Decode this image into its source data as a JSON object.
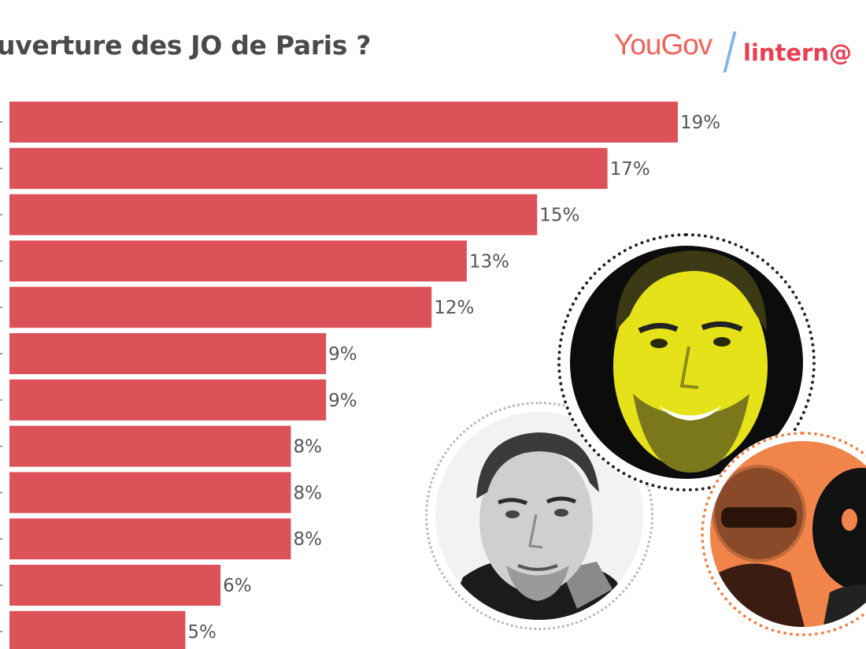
{
  "title": "uverture des JO de Paris ?",
  "logos": {
    "yougov": "YouGov",
    "partner": "lintern@"
  },
  "colors": {
    "bar": "#dd5159",
    "text": "#555555",
    "yellow": "#e6e21a",
    "orange": "#f0844a"
  },
  "chart_data": {
    "type": "bar",
    "orientation": "horizontal",
    "categories": [
      "",
      "",
      "",
      "",
      "",
      "",
      "",
      "",
      "",
      "",
      "",
      ""
    ],
    "values": [
      19,
      17,
      15,
      13,
      12,
      9,
      9,
      8,
      8,
      8,
      6,
      5
    ],
    "labels": [
      "19%",
      "17%",
      "15%",
      "13%",
      "12%",
      "9%",
      "9%",
      "8%",
      "8%",
      "8%",
      "6%",
      "5%"
    ],
    "xlim": [
      0,
      19
    ],
    "grid": false
  },
  "photos": [
    {
      "name": "man-yellow-portrait",
      "style": "yellow duotone"
    },
    {
      "name": "man-grayscale-portrait",
      "style": "black and white"
    },
    {
      "name": "helmets-orange-portrait",
      "style": "orange duotone"
    }
  ]
}
